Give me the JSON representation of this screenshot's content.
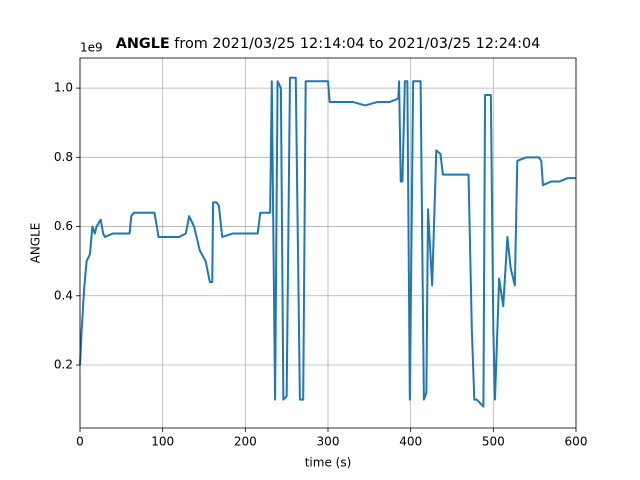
{
  "chart_data": {
    "type": "line",
    "title_bold": "ANGLE",
    "title_rest": "from 2021/03/25 12:14:04 to 2021/03/25 12:24:04",
    "y_offset_label": "1e9",
    "xlabel": "time (s)",
    "ylabel": "ANGLE",
    "x": [
      0,
      2,
      5,
      8,
      10,
      12,
      15,
      18,
      20,
      25,
      28,
      30,
      40,
      50,
      60,
      62,
      65,
      75,
      90,
      93,
      95,
      105,
      120,
      128,
      132,
      138,
      145,
      152,
      157,
      160,
      161,
      165,
      168,
      172,
      185,
      200,
      215,
      218,
      230,
      232,
      236,
      239,
      243,
      246,
      250,
      254,
      261,
      266,
      270,
      273,
      290,
      300,
      302,
      315,
      330,
      345,
      360,
      375,
      385,
      386,
      388,
      390,
      393,
      396,
      399,
      403,
      412,
      416,
      419,
      421,
      426,
      431,
      436,
      439,
      455,
      470,
      474,
      477,
      480,
      488,
      490,
      497,
      500,
      502,
      507,
      512,
      517,
      521,
      526,
      529,
      540,
      555,
      558,
      560,
      570,
      580,
      590,
      600
    ],
    "series": [
      {
        "name": "ANGLE",
        "color": "#1f77b4",
        "values": [
          0.2,
          0.3,
          0.42,
          0.5,
          0.51,
          0.52,
          0.6,
          0.58,
          0.6,
          0.62,
          0.58,
          0.57,
          0.58,
          0.58,
          0.58,
          0.63,
          0.64,
          0.64,
          0.64,
          0.6,
          0.57,
          0.57,
          0.57,
          0.58,
          0.63,
          0.6,
          0.53,
          0.5,
          0.44,
          0.44,
          0.67,
          0.67,
          0.66,
          0.57,
          0.58,
          0.58,
          0.58,
          0.64,
          0.64,
          1.02,
          0.1,
          1.02,
          1.0,
          0.1,
          0.11,
          1.03,
          1.03,
          0.1,
          0.1,
          1.02,
          1.02,
          1.02,
          0.96,
          0.96,
          0.96,
          0.95,
          0.96,
          0.96,
          0.97,
          1.02,
          0.73,
          0.73,
          1.02,
          1.02,
          0.1,
          1.02,
          1.02,
          0.1,
          0.12,
          0.65,
          0.43,
          0.82,
          0.81,
          0.75,
          0.75,
          0.75,
          0.3,
          0.1,
          0.1,
          0.08,
          0.98,
          0.98,
          0.3,
          0.1,
          0.45,
          0.37,
          0.57,
          0.48,
          0.43,
          0.79,
          0.8,
          0.8,
          0.79,
          0.72,
          0.73,
          0.73,
          0.74,
          0.74
        ]
      }
    ],
    "xlim": [
      0,
      600
    ],
    "xticks": [
      0,
      100,
      200,
      300,
      400,
      500,
      600
    ],
    "ylim": [
      0.018,
      1.087
    ],
    "yticks": [
      0.2,
      0.4,
      0.6,
      0.8,
      {
        "value": 1,
        "label": "1.0"
      }
    ],
    "grid": true
  }
}
